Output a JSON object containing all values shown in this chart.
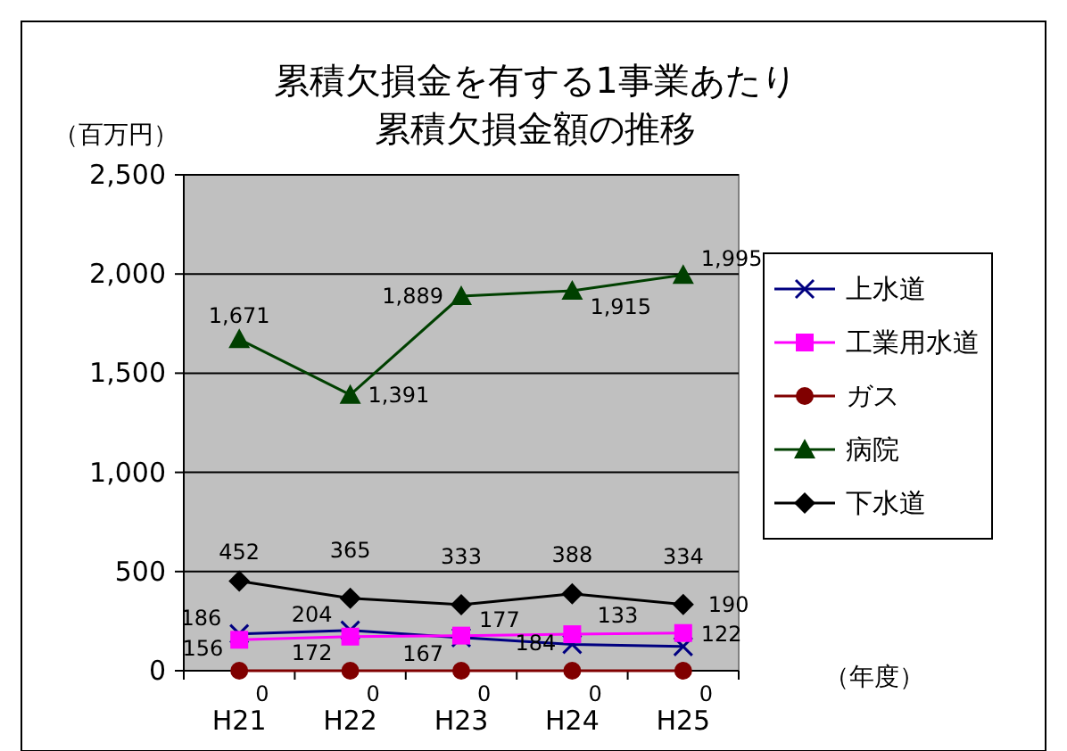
{
  "chart_data": {
    "type": "line",
    "title": "累積欠損金を有する1事業あたり累積欠損金額の推移",
    "ylabel": "（百万円）",
    "xlabel": "（年度）",
    "categories": [
      "H21",
      "H22",
      "H23",
      "H24",
      "H25"
    ],
    "series": [
      {
        "name": "上水道",
        "color": "#000080",
        "marker": "cross",
        "values": [
          186,
          204,
          167,
          133,
          122
        ],
        "value_labels": [
          "186",
          "204",
          "167",
          "133",
          "122"
        ]
      },
      {
        "name": "工業用水道",
        "color": "#ff00ff",
        "marker": "square",
        "values": [
          156,
          172,
          177,
          184,
          190
        ],
        "value_labels": [
          "156",
          "172",
          "177",
          "184",
          "190"
        ]
      },
      {
        "name": "ガス",
        "color": "#800000",
        "marker": "circle",
        "values": [
          0,
          0,
          0,
          0,
          0
        ],
        "value_labels": [
          "0",
          "0",
          "0",
          "0",
          "0"
        ]
      },
      {
        "name": "病院",
        "color": "#004000",
        "marker": "triangle",
        "values": [
          1671,
          1391,
          1889,
          1915,
          1995
        ],
        "value_labels": [
          "1,671",
          "1,391",
          "1,889",
          "1,915",
          "1,995"
        ]
      },
      {
        "name": "下水道",
        "color": "#000000",
        "marker": "diamond",
        "values": [
          452,
          365,
          333,
          388,
          334
        ],
        "value_labels": [
          "452",
          "365",
          "333",
          "388",
          "334"
        ]
      }
    ],
    "ylim": [
      0,
      2500
    ],
    "yticks": [
      0,
      500,
      {
        "value": 1000,
        "label": "1,000"
      },
      {
        "value": 1500,
        "label": "1,500"
      },
      {
        "value": 2000,
        "label": "2,000"
      },
      {
        "value": 2500,
        "label": "2,500"
      }
    ],
    "grid": "y",
    "legend": "right"
  }
}
